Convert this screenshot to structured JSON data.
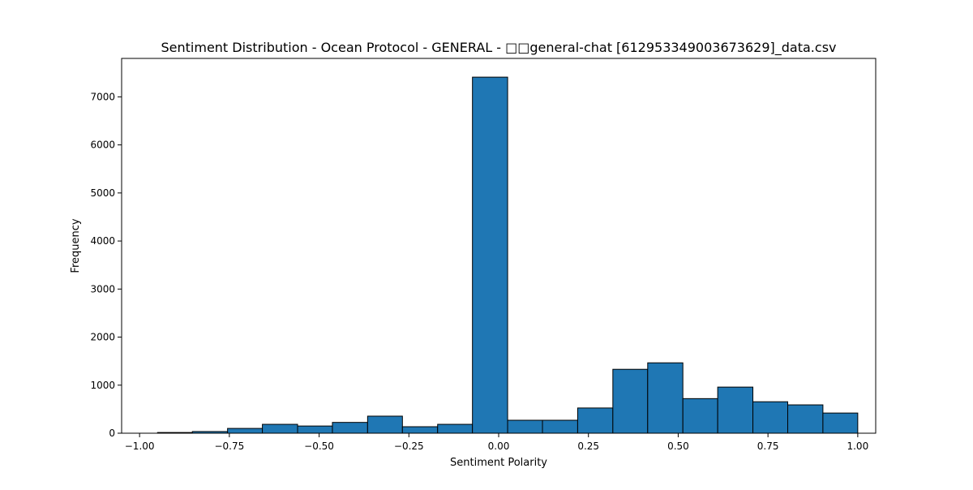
{
  "chart_data": {
    "type": "bar",
    "title": "Sentiment Distribution - Ocean Protocol - GENERAL - □□general-chat [612953349003673629]_data.csv",
    "xlabel": "Sentiment Polarity",
    "ylabel": "Frequency",
    "xlim": [
      -1.05,
      1.05
    ],
    "ylim": [
      0,
      7800
    ],
    "xticks": [
      {
        "value": -1.0,
        "label": "−1.00"
      },
      {
        "value": -0.75,
        "label": "−0.75"
      },
      {
        "value": -0.5,
        "label": "−0.50"
      },
      {
        "value": -0.25,
        "label": "−0.25"
      },
      {
        "value": 0.0,
        "label": "0.00"
      },
      {
        "value": 0.25,
        "label": "0.25"
      },
      {
        "value": 0.5,
        "label": "0.50"
      },
      {
        "value": 0.75,
        "label": "0.75"
      },
      {
        "value": 1.0,
        "label": "1.00"
      }
    ],
    "yticks": [
      {
        "value": 0,
        "label": "0"
      },
      {
        "value": 1000,
        "label": "1000"
      },
      {
        "value": 2000,
        "label": "2000"
      },
      {
        "value": 3000,
        "label": "3000"
      },
      {
        "value": 4000,
        "label": "4000"
      },
      {
        "value": 5000,
        "label": "5000"
      },
      {
        "value": 6000,
        "label": "6000"
      },
      {
        "value": 7000,
        "label": "7000"
      }
    ],
    "bins": [
      {
        "x0": -0.95,
        "x1": -0.853,
        "count": 15
      },
      {
        "x0": -0.853,
        "x1": -0.755,
        "count": 35
      },
      {
        "x0": -0.755,
        "x1": -0.658,
        "count": 100
      },
      {
        "x0": -0.658,
        "x1": -0.56,
        "count": 185
      },
      {
        "x0": -0.56,
        "x1": -0.463,
        "count": 150
      },
      {
        "x0": -0.463,
        "x1": -0.365,
        "count": 225
      },
      {
        "x0": -0.365,
        "x1": -0.268,
        "count": 355
      },
      {
        "x0": -0.268,
        "x1": -0.17,
        "count": 135
      },
      {
        "x0": -0.17,
        "x1": -0.073,
        "count": 185
      },
      {
        "x0": -0.073,
        "x1": 0.025,
        "count": 7410
      },
      {
        "x0": 0.025,
        "x1": 0.122,
        "count": 270
      },
      {
        "x0": 0.122,
        "x1": 0.22,
        "count": 270
      },
      {
        "x0": 0.22,
        "x1": 0.318,
        "count": 525
      },
      {
        "x0": 0.318,
        "x1": 0.415,
        "count": 1330
      },
      {
        "x0": 0.415,
        "x1": 0.513,
        "count": 1465
      },
      {
        "x0": 0.513,
        "x1": 0.61,
        "count": 720
      },
      {
        "x0": 0.61,
        "x1": 0.708,
        "count": 960
      },
      {
        "x0": 0.708,
        "x1": 0.805,
        "count": 655
      },
      {
        "x0": 0.805,
        "x1": 0.903,
        "count": 590
      },
      {
        "x0": 0.903,
        "x1": 1.0,
        "count": 420
      }
    ],
    "bar_color": "#1f77b4",
    "edge_color": "#000000",
    "grid": false,
    "legend": "none"
  }
}
